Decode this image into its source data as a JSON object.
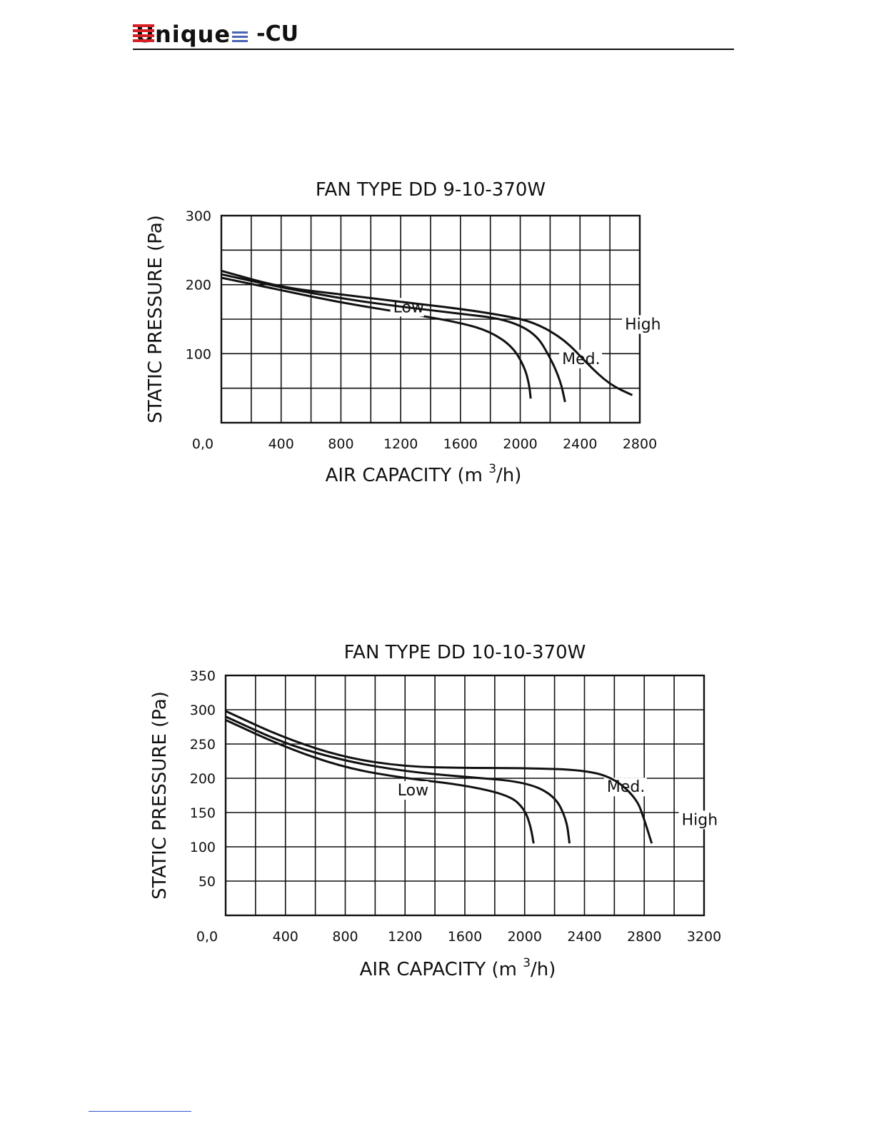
{
  "header": {
    "logo_text": "Unique",
    "logo_suffix": "-CU"
  },
  "chart_data": [
    {
      "type": "line",
      "title": "FAN TYPE DD 9-10-370W",
      "xlabel": "AIR CAPACITY (m³/h)",
      "xlabel_main": "AIR CAPACITY (m",
      "xlabel_sup": "3",
      "xlabel_tail": "/h)",
      "ylabel": "STATIC PRESSURE (Pa)",
      "xlim": [
        0,
        2800
      ],
      "ylim": [
        0,
        300
      ],
      "x_ticks": [
        0,
        400,
        800,
        1200,
        1600,
        2000,
        2400,
        2800
      ],
      "x_tick_labels": [
        "0,0",
        "400",
        "800",
        "1200",
        "1600",
        "2000",
        "2400",
        "2800"
      ],
      "y_ticks": [
        100,
        200,
        300
      ],
      "y_tick_labels": [
        "100",
        "200",
        "300"
      ],
      "grid": true,
      "series": [
        {
          "name": "Low",
          "x": [
            0,
            400,
            800,
            1200,
            1600,
            1800,
            1950,
            2030,
            2060,
            2070
          ],
          "y": [
            210,
            192,
            174,
            160,
            145,
            132,
            110,
            80,
            55,
            35
          ]
        },
        {
          "name": "Med.",
          "x": [
            0,
            400,
            800,
            1200,
            1600,
            1900,
            2100,
            2200,
            2270,
            2300
          ],
          "y": [
            215,
            196,
            180,
            168,
            158,
            150,
            130,
            95,
            60,
            30
          ]
        },
        {
          "name": "High",
          "x": [
            0,
            400,
            800,
            1200,
            1600,
            1900,
            2100,
            2300,
            2450,
            2600,
            2750
          ],
          "y": [
            220,
            196,
            186,
            175,
            165,
            155,
            145,
            120,
            85,
            55,
            40
          ]
        }
      ],
      "annotations": [
        "Low",
        "Med.",
        "High"
      ]
    },
    {
      "type": "line",
      "title": "FAN TYPE DD 10-10-370W",
      "xlabel": "AIR CAPACITY (m³/h)",
      "xlabel_main": "AIR CAPACITY (m",
      "xlabel_sup": "3",
      "xlabel_tail": "/h)",
      "ylabel": "STATIC PRESSURE (Pa)",
      "xlim": [
        0,
        3200
      ],
      "ylim": [
        0,
        350
      ],
      "x_ticks": [
        0,
        400,
        800,
        1200,
        1600,
        2000,
        2400,
        2800,
        3200
      ],
      "x_tick_labels": [
        "0,0",
        "400",
        "800",
        "1200",
        "1600",
        "2000",
        "2400",
        "2800",
        "3200"
      ],
      "y_ticks": [
        50,
        100,
        150,
        200,
        250,
        300,
        350
      ],
      "y_tick_labels": [
        "50",
        "100",
        "150",
        "200",
        "250",
        "300",
        "350"
      ],
      "grid": true,
      "series": [
        {
          "name": "Low",
          "x": [
            0,
            400,
            800,
            1200,
            1600,
            1900,
            2000,
            2040,
            2060
          ],
          "y": [
            285,
            245,
            215,
            200,
            190,
            175,
            155,
            130,
            105
          ]
        },
        {
          "name": "Med.",
          "x": [
            0,
            400,
            800,
            1200,
            1600,
            2000,
            2200,
            2280,
            2300
          ],
          "y": [
            290,
            250,
            225,
            210,
            202,
            195,
            175,
            140,
            105
          ]
        },
        {
          "name": "High",
          "x": [
            0,
            400,
            800,
            1200,
            1600,
            2000,
            2400,
            2600,
            2750,
            2800,
            2850
          ],
          "y": [
            298,
            258,
            230,
            217,
            215,
            215,
            212,
            200,
            170,
            140,
            105
          ]
        }
      ],
      "annotations": [
        "Low",
        "Med.",
        "High"
      ]
    }
  ]
}
